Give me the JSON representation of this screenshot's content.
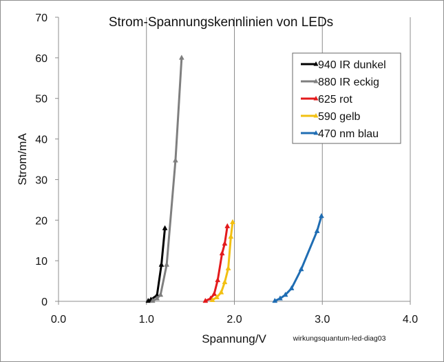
{
  "chart_data": {
    "type": "scatter",
    "title": "Strom-Spannungskennlinien von LEDs",
    "xlabel": "Spannung/V",
    "ylabel": "Strom/mA",
    "annotation": "wirkungsquantum-led-diag03",
    "xlim": [
      0,
      4
    ],
    "ylim": [
      0,
      70
    ],
    "xticks": [
      "0.0",
      "1.0",
      "2.0",
      "3.0",
      "4.0"
    ],
    "yticks": [
      "0",
      "10",
      "20",
      "30",
      "40",
      "50",
      "60",
      "70"
    ],
    "grid": "vertical",
    "legend_position": "top-right",
    "series": [
      {
        "name": "940 IR dunkel",
        "color": "#000000",
        "points": [
          [
            1.02,
            0.1
          ],
          [
            1.05,
            0.4
          ],
          [
            1.12,
            1.5
          ],
          [
            1.17,
            9.0
          ],
          [
            1.21,
            18.0
          ]
        ]
      },
      {
        "name": "880 IR eckig",
        "color": "#7f7f7f",
        "points": [
          [
            1.07,
            0.1
          ],
          [
            1.12,
            0.7
          ],
          [
            1.16,
            1.6
          ],
          [
            1.23,
            9.0
          ],
          [
            1.33,
            34.7
          ],
          [
            1.4,
            60.0
          ]
        ]
      },
      {
        "name": "625 rot",
        "color": "#e31a1c",
        "points": [
          [
            1.67,
            0.1
          ],
          [
            1.73,
            0.7
          ],
          [
            1.77,
            1.8
          ],
          [
            1.81,
            5.2
          ],
          [
            1.86,
            11.8
          ],
          [
            1.89,
            14.2
          ],
          [
            1.92,
            18.5
          ]
        ]
      },
      {
        "name": "590 gelb",
        "color": "#f2c012",
        "points": [
          [
            1.75,
            0.3
          ],
          [
            1.8,
            1.0
          ],
          [
            1.85,
            2.2
          ],
          [
            1.89,
            4.7
          ],
          [
            1.93,
            8.1
          ],
          [
            1.96,
            15.9
          ],
          [
            1.98,
            19.5
          ]
        ]
      },
      {
        "name": "470 nm blau",
        "color": "#1f6db3",
        "points": [
          [
            2.46,
            0.1
          ],
          [
            2.52,
            0.7
          ],
          [
            2.58,
            1.6
          ],
          [
            2.65,
            3.2
          ],
          [
            2.76,
            7.9
          ],
          [
            2.94,
            17.3
          ],
          [
            2.99,
            21.0
          ]
        ]
      }
    ]
  }
}
